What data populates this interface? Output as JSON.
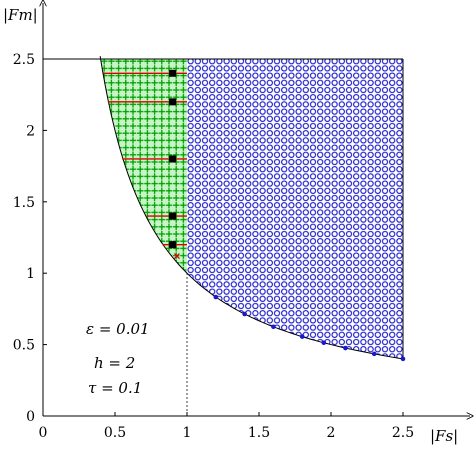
{
  "chart_data": {
    "type": "scatter",
    "xlabel": "|Fs|",
    "ylabel": "|Fm|",
    "xlim": [
      0,
      2.5
    ],
    "ylim": [
      0,
      2.5
    ],
    "x_ticks": [
      "0",
      "0.5",
      "1",
      "1.5",
      "2",
      "2.5"
    ],
    "y_ticks": [
      "0",
      "0.5",
      "1",
      "1.5",
      "2",
      "2.5"
    ],
    "grid": false,
    "boundary_curve": "y = 1/x",
    "annotations": [
      "ε = 0.01",
      "h = 2",
      "τ = 0.1"
    ],
    "vertical_reference_line": {
      "x": 1,
      "style": "dotted"
    },
    "regions": [
      {
        "marker": "plus",
        "color": "#00a000",
        "background": "#c8f5c8",
        "x_range": [
          0.4,
          1.0
        ],
        "y_range": [
          0.4,
          2.5
        ],
        "bounded_below_by": "y = 1/x"
      },
      {
        "marker": "circle",
        "color": "#1a1acc",
        "x_range": [
          1.0,
          2.5
        ],
        "y_range": [
          0.4,
          2.5
        ],
        "bounded_below_by": "y = 1/x"
      }
    ],
    "red_segments": [
      {
        "y": 2.4,
        "x": [
          0.42,
          1.0
        ]
      },
      {
        "y": 2.2,
        "x": [
          0.45,
          1.0
        ]
      },
      {
        "y": 1.8,
        "x": [
          0.55,
          1.0
        ]
      },
      {
        "y": 1.4,
        "x": [
          0.72,
          1.0
        ]
      },
      {
        "y": 1.2,
        "x": [
          0.83,
          1.0
        ]
      }
    ],
    "black_squares": [
      {
        "x": 0.9,
        "y": 2.4
      },
      {
        "x": 0.9,
        "y": 2.2
      },
      {
        "x": 0.9,
        "y": 1.8
      },
      {
        "x": 0.9,
        "y": 1.4
      },
      {
        "x": 0.9,
        "y": 1.2
      }
    ],
    "red_crosses": [
      {
        "x": 0.93,
        "y": 1.12
      }
    ],
    "boundary_points": [
      {
        "x": 1.2,
        "y": 0.833
      },
      {
        "x": 1.4,
        "y": 0.714
      },
      {
        "x": 1.6,
        "y": 0.625
      },
      {
        "x": 1.8,
        "y": 0.556
      },
      {
        "x": 1.95,
        "y": 0.513
      },
      {
        "x": 2.1,
        "y": 0.476
      },
      {
        "x": 2.3,
        "y": 0.435
      },
      {
        "x": 2.5,
        "y": 0.4
      }
    ],
    "colors": {
      "green_marker": "#00a000",
      "green_fill": "#c8f5c8",
      "blue_marker": "#1a1acc",
      "red": "#e00000",
      "black": "#000000"
    }
  }
}
